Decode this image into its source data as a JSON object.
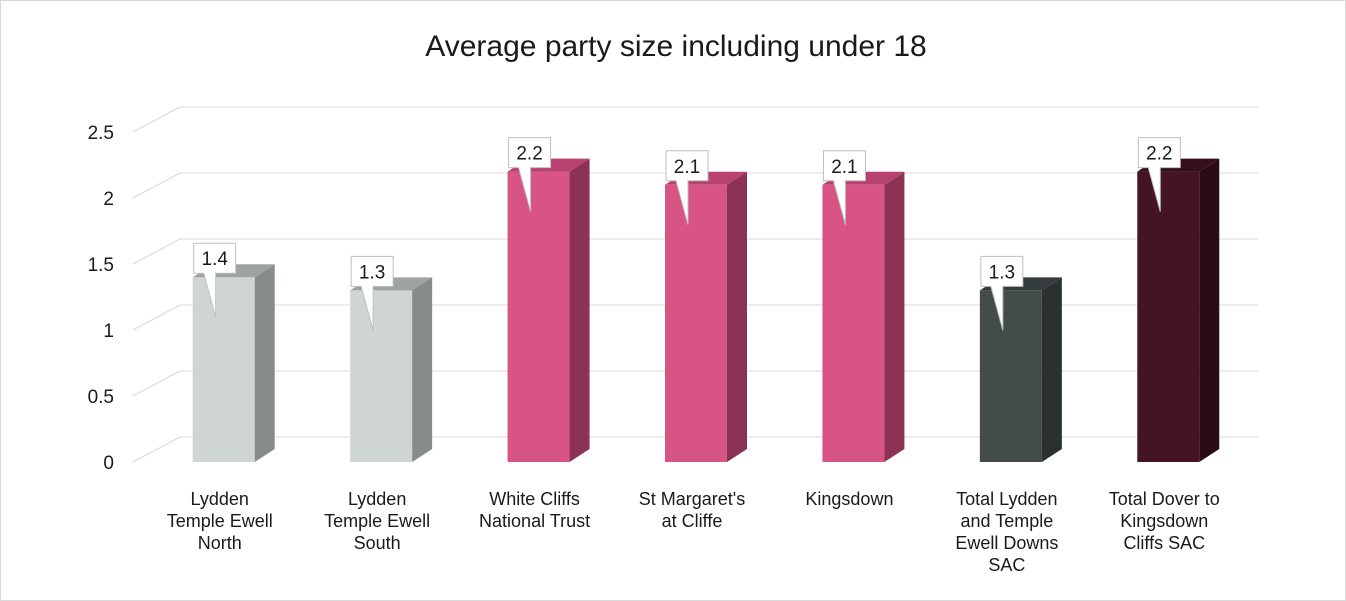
{
  "chart_data": {
    "type": "bar",
    "title": "Average party size including under 18",
    "xlabel": "",
    "ylabel": "",
    "ylim": [
      0,
      2.5
    ],
    "y_ticks": [
      "0",
      "0.5",
      "1",
      "1.5",
      "2",
      "2.5"
    ],
    "grid": true,
    "legend": "none",
    "categories": [
      [
        "Lydden",
        "Temple Ewell",
        "North"
      ],
      [
        "Lydden",
        "Temple Ewell",
        "South"
      ],
      [
        "White Cliffs",
        "National Trust"
      ],
      [
        "St Margaret's",
        "at Cliffe"
      ],
      [
        "Kingsdown"
      ],
      [
        "Total Lydden",
        "and Temple",
        "Ewell Downs",
        "SAC"
      ],
      [
        "Total Dover to",
        "Kingsdown",
        "Cliffs SAC"
      ]
    ],
    "values": [
      1.4,
      1.3,
      2.2,
      2.1,
      2.1,
      1.3,
      2.2
    ],
    "data_labels": [
      "1.4",
      "1.3",
      "2.2",
      "2.1",
      "2.1",
      "1.3",
      "2.2"
    ],
    "colors": [
      {
        "front": "#cfd5d3",
        "side": "#878c8b",
        "top": "#9ea3a2"
      },
      {
        "front": "#cfd5d3",
        "side": "#878c8b",
        "top": "#9ea3a2"
      },
      {
        "front": "#d85485",
        "side": "#8c3254",
        "top": "#b8426f"
      },
      {
        "front": "#d85485",
        "side": "#8c3254",
        "top": "#b8426f"
      },
      {
        "front": "#d85485",
        "side": "#8c3254",
        "top": "#b8426f"
      },
      {
        "front": "#434c4b",
        "side": "#2a3130",
        "top": "#353d3c"
      },
      {
        "front": "#451424",
        "side": "#2a0b16",
        "top": "#360f1c"
      }
    ]
  }
}
